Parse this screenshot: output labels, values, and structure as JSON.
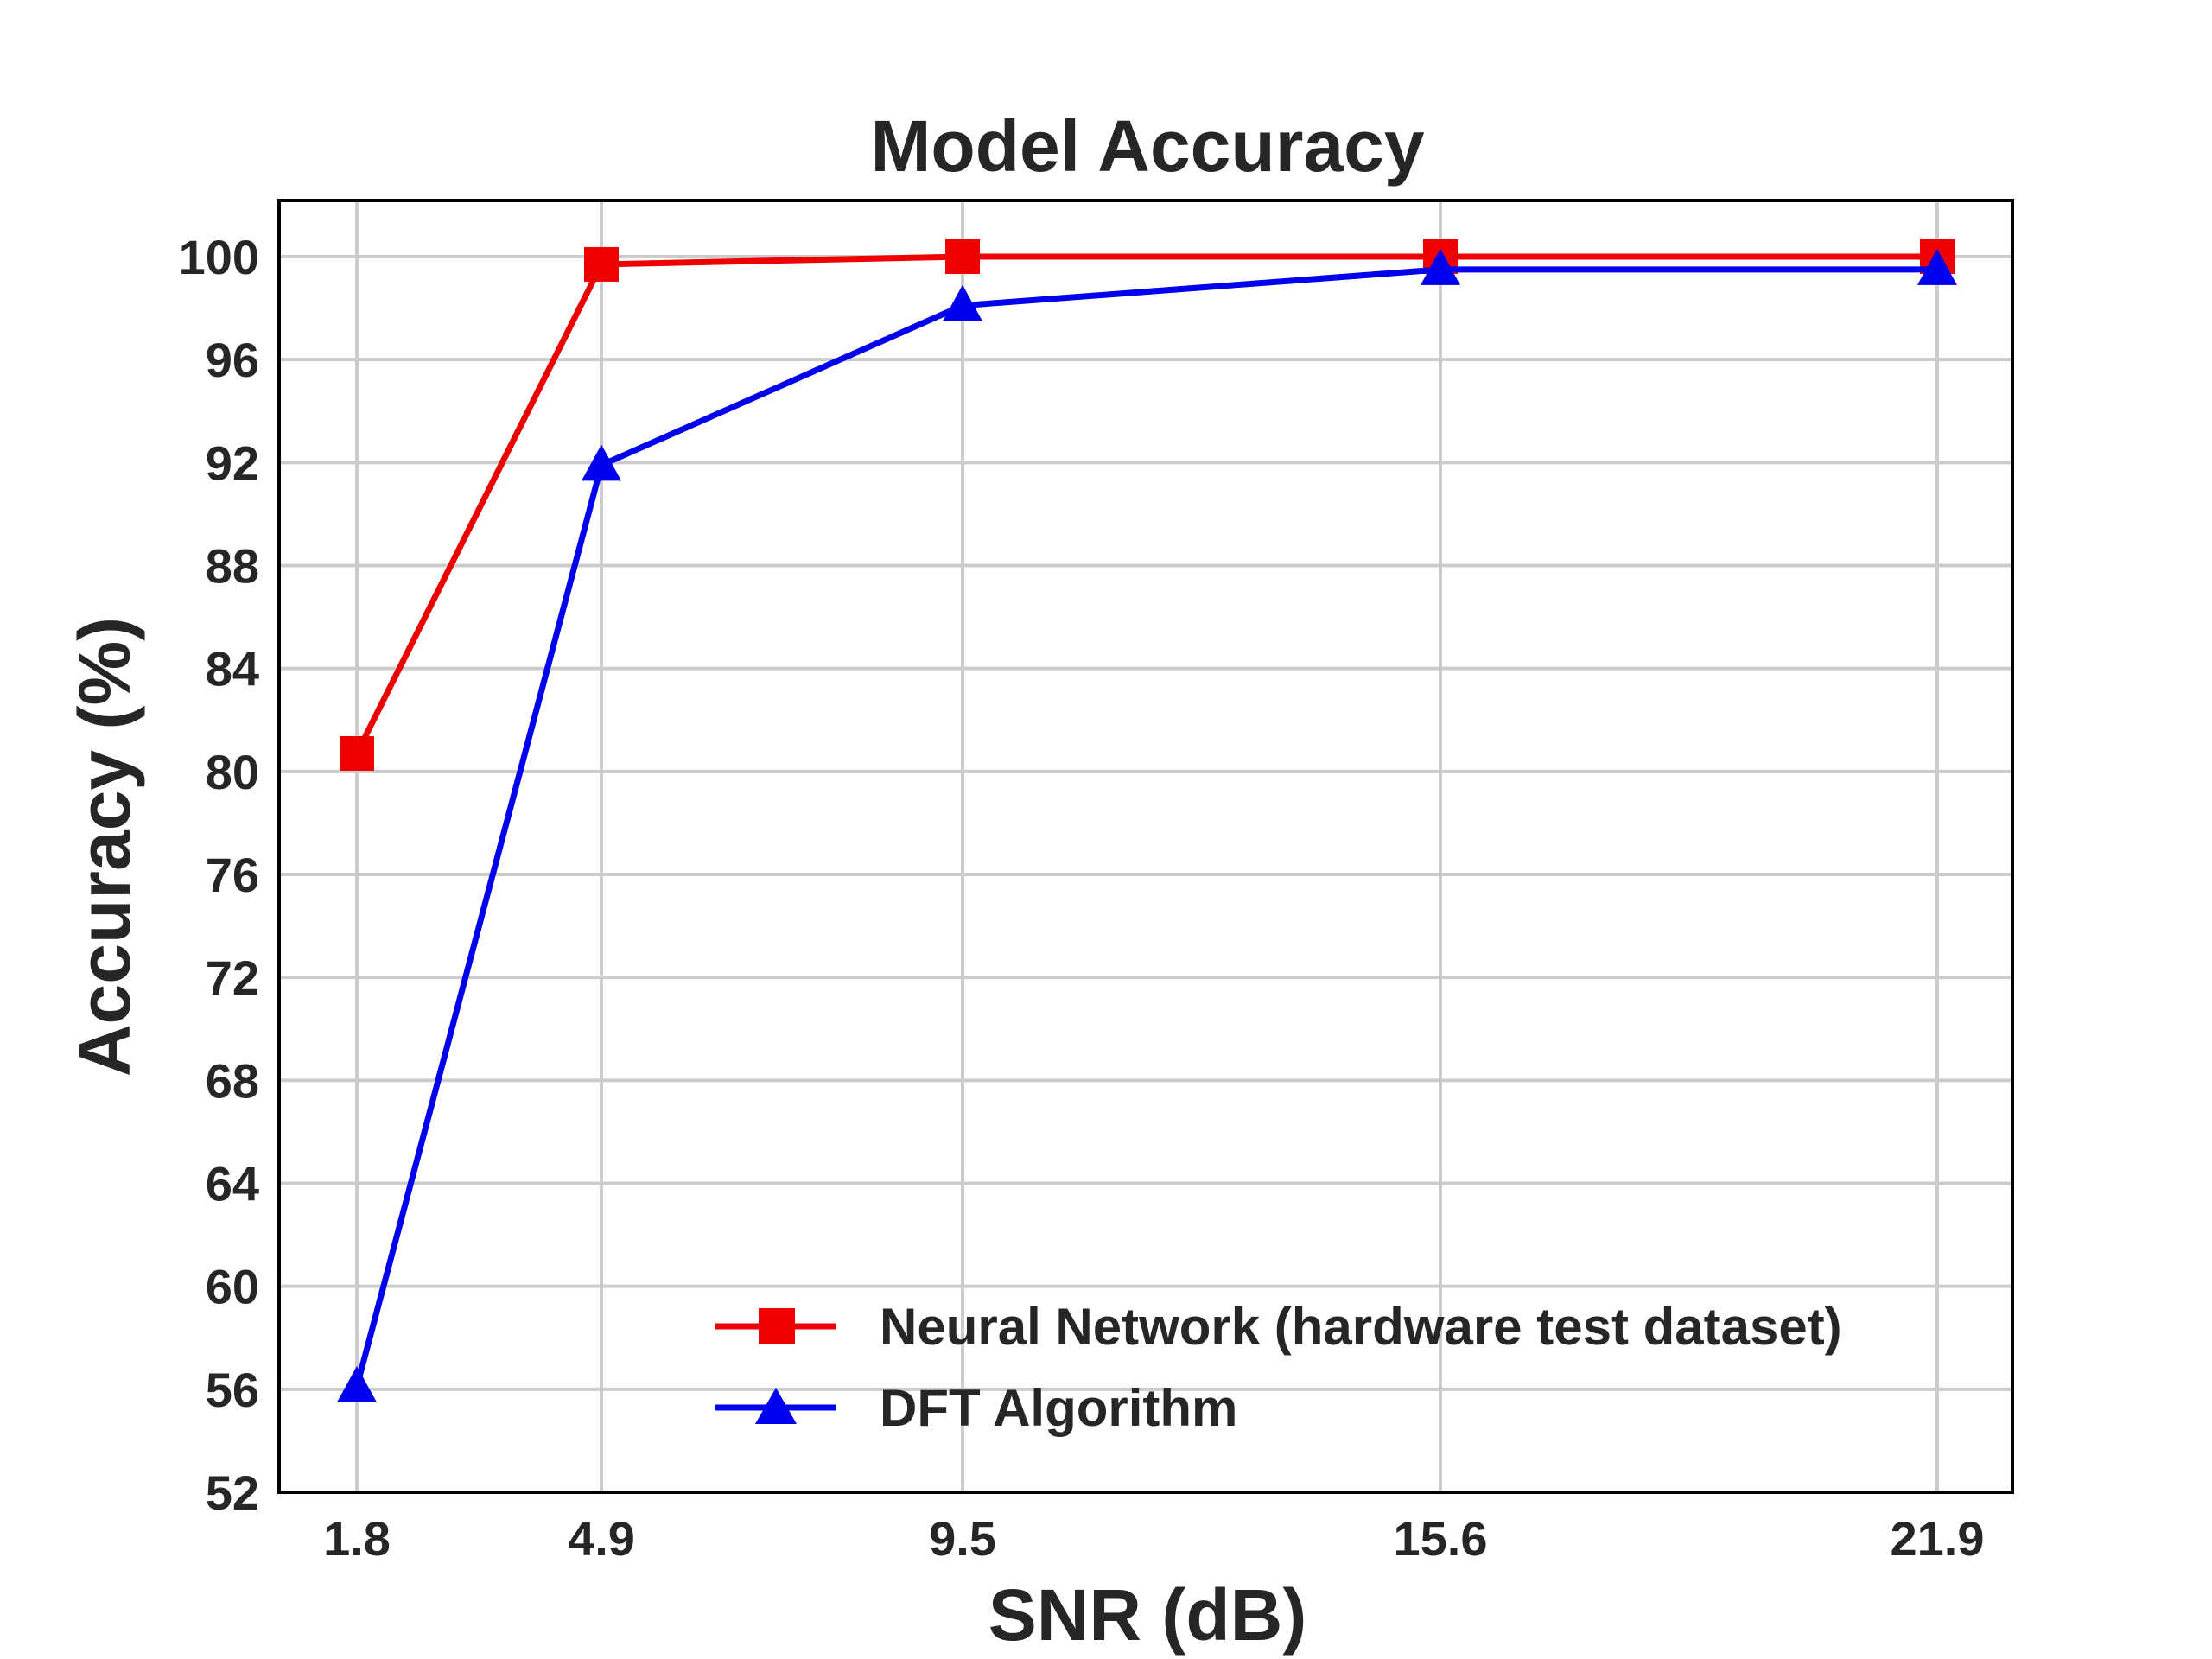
{
  "chart_data": {
    "type": "line",
    "title": "Model Accuracy",
    "xlabel": "SNR (dB)",
    "ylabel": "Accuracy (%)",
    "x_tick_labels": [
      "1.8",
      "4.9",
      "9.5",
      "15.6",
      "21.9"
    ],
    "x": [
      1.8,
      4.9,
      9.5,
      15.6,
      21.9
    ],
    "xlim": [
      0.8,
      22.9
    ],
    "ylim": [
      52,
      102
    ],
    "yticks": [
      52,
      56,
      60,
      64,
      68,
      72,
      76,
      80,
      84,
      88,
      92,
      96,
      100
    ],
    "grid": true,
    "legend_position": "lower-right",
    "series": [
      {
        "name": "Neural Network (hardware test dataset)",
        "values": [
          80.7,
          99.7,
          100.0,
          100.0,
          100.0
        ],
        "color": "#ee0000",
        "marker": "square"
      },
      {
        "name": "DFT Algorithm",
        "values": [
          56.1,
          91.9,
          98.1,
          99.5,
          99.5
        ],
        "color": "#0000ee",
        "marker": "triangle"
      }
    ]
  }
}
